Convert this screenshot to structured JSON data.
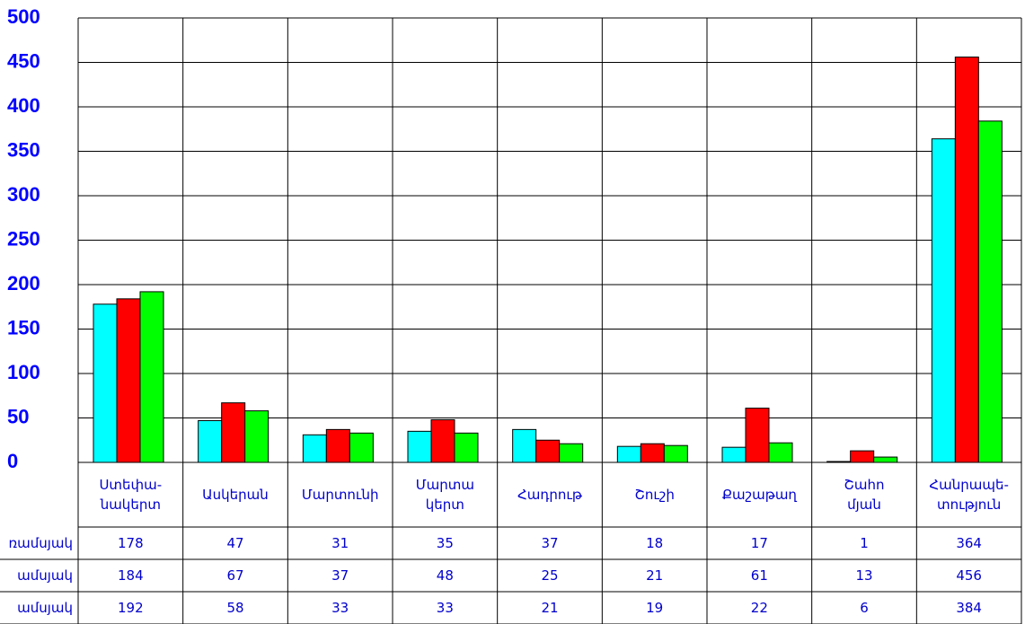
{
  "chart_data": {
    "type": "bar",
    "categories": [
      "Ստեփա-\nնակերտ",
      "Ասկերան",
      "Մարտունի",
      "Մարտա\nկերտ",
      "Հադրութ",
      "Շուշի",
      "Քաշաթաղ",
      "Շահո\nմյան",
      "Հանրապե-\nտություն"
    ],
    "series": [
      {
        "name": "ռամսյակ",
        "color": "#00ffff",
        "values": [
          178,
          47,
          31,
          35,
          37,
          18,
          17,
          1,
          364
        ]
      },
      {
        "name": "ամսյակ",
        "color": "#ff0000",
        "values": [
          184,
          67,
          37,
          48,
          25,
          21,
          61,
          13,
          456
        ]
      },
      {
        "name": "ամսյակ",
        "color": "#00ff00",
        "values": [
          192,
          58,
          33,
          33,
          21,
          19,
          22,
          6,
          384
        ]
      }
    ],
    "ylim": [
      0,
      500
    ],
    "yticks": [
      0,
      50,
      100,
      150,
      200,
      250,
      300,
      350,
      400,
      450,
      500
    ],
    "grid": true
  }
}
